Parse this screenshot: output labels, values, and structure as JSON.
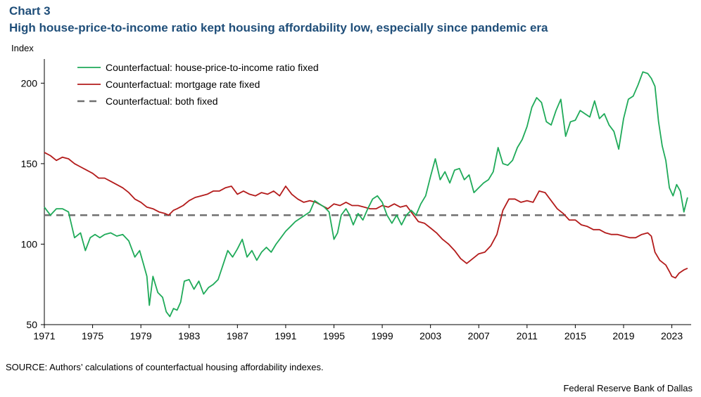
{
  "header": {
    "chart_label": "Chart 3",
    "title": "High house-price-to-income ratio kept housing affordability low, especially since pandemic era"
  },
  "footer": {
    "source": "SOURCE: Authors’ calculations of counterfactual housing affordability indexes.",
    "credit": "Federal Reserve Bank of Dallas"
  },
  "chart_data": {
    "type": "line",
    "ylabel": "Index",
    "ylim": [
      50,
      215
    ],
    "yticks": [
      50,
      100,
      150,
      200
    ],
    "xlim": [
      1971,
      2024.6
    ],
    "xticks": [
      1971,
      1975,
      1979,
      1983,
      1987,
      1991,
      1995,
      1999,
      2003,
      2007,
      2011,
      2015,
      2019,
      2023
    ],
    "grid": false,
    "legend_position": "top-left",
    "series": [
      {
        "name": "Counterfactual: house-price-to-income ratio fixed",
        "color": "#1faa59",
        "style": "solid",
        "x": [
          1971.0,
          1971.5,
          1972.0,
          1972.5,
          1973.0,
          1973.5,
          1974.0,
          1974.4,
          1974.8,
          1975.2,
          1975.6,
          1976.0,
          1976.5,
          1977.0,
          1977.5,
          1978.0,
          1978.5,
          1978.9,
          1979.2,
          1979.5,
          1979.7,
          1980.0,
          1980.4,
          1980.8,
          1981.1,
          1981.4,
          1981.7,
          1982.0,
          1982.3,
          1982.6,
          1983.0,
          1983.4,
          1983.8,
          1984.2,
          1984.6,
          1985.0,
          1985.4,
          1985.8,
          1986.2,
          1986.6,
          1987.0,
          1987.4,
          1987.8,
          1988.2,
          1988.6,
          1989.0,
          1989.4,
          1989.8,
          1990.2,
          1990.6,
          1991.0,
          1991.4,
          1991.8,
          1992.2,
          1992.6,
          1993.0,
          1993.4,
          1993.8,
          1994.2,
          1994.6,
          1995.0,
          1995.3,
          1995.6,
          1996.0,
          1996.3,
          1996.6,
          1997.0,
          1997.4,
          1997.8,
          1998.2,
          1998.6,
          1999.0,
          1999.4,
          1999.8,
          2000.2,
          2000.6,
          2001.0,
          2001.4,
          2001.8,
          2002.2,
          2002.6,
          2003.0,
          2003.4,
          2003.8,
          2004.2,
          2004.6,
          2005.0,
          2005.4,
          2005.8,
          2006.2,
          2006.6,
          2007.0,
          2007.4,
          2007.8,
          2008.2,
          2008.6,
          2009.0,
          2009.4,
          2009.8,
          2010.2,
          2010.6,
          2011.0,
          2011.4,
          2011.8,
          2012.2,
          2012.6,
          2013.0,
          2013.4,
          2013.8,
          2014.2,
          2014.6,
          2015.0,
          2015.4,
          2015.8,
          2016.2,
          2016.6,
          2017.0,
          2017.4,
          2017.8,
          2018.2,
          2018.6,
          2019.0,
          2019.4,
          2019.8,
          2020.2,
          2020.6,
          2021.0,
          2021.3,
          2021.6,
          2021.9,
          2022.2,
          2022.5,
          2022.8,
          2023.1,
          2023.4,
          2023.7,
          2024.0,
          2024.3
        ],
        "values": [
          123,
          118,
          122,
          122,
          120,
          104,
          107,
          96,
          104,
          106,
          104,
          106,
          107,
          105,
          106,
          102,
          92,
          96,
          88,
          80,
          62,
          80,
          70,
          67,
          58,
          55,
          60,
          59,
          64,
          77,
          78,
          72,
          77,
          69,
          73,
          75,
          78,
          87,
          96,
          92,
          97,
          103,
          92,
          96,
          90,
          95,
          98,
          95,
          100,
          104,
          108,
          111,
          114,
          116,
          118,
          120,
          127,
          125,
          123,
          120,
          103,
          107,
          118,
          122,
          118,
          112,
          119,
          115,
          122,
          128,
          130,
          126,
          118,
          113,
          118,
          112,
          118,
          121,
          118,
          125,
          130,
          142,
          153,
          140,
          145,
          138,
          146,
          147,
          140,
          143,
          132,
          135,
          138,
          140,
          145,
          160,
          150,
          149,
          152,
          160,
          165,
          173,
          185,
          191,
          188,
          176,
          174,
          183,
          190,
          167,
          176,
          177,
          183,
          181,
          179,
          189,
          178,
          181,
          174,
          170,
          159,
          178,
          190,
          192,
          199,
          207,
          206,
          203,
          198,
          176,
          161,
          152,
          135,
          130,
          137,
          133,
          120,
          129
        ]
      },
      {
        "name": "Counterfactual: mortgage rate fixed",
        "color": "#b31b1b",
        "style": "solid",
        "x": [
          1971.0,
          1971.5,
          1972.0,
          1972.5,
          1973.0,
          1973.5,
          1974.0,
          1974.5,
          1975.0,
          1975.5,
          1976.0,
          1976.5,
          1977.0,
          1977.5,
          1978.0,
          1978.5,
          1979.0,
          1979.5,
          1980.0,
          1980.5,
          1981.0,
          1981.3,
          1981.7,
          1982.0,
          1982.5,
          1983.0,
          1983.5,
          1984.0,
          1984.5,
          1985.0,
          1985.5,
          1986.0,
          1986.5,
          1987.0,
          1987.5,
          1988.0,
          1988.5,
          1989.0,
          1989.5,
          1990.0,
          1990.5,
          1991.0,
          1991.5,
          1992.0,
          1992.5,
          1993.0,
          1993.5,
          1994.0,
          1994.5,
          1995.0,
          1995.5,
          1996.0,
          1996.5,
          1997.0,
          1997.5,
          1998.0,
          1998.5,
          1999.0,
          1999.5,
          2000.0,
          2000.5,
          2001.0,
          2001.5,
          2002.0,
          2002.5,
          2003.0,
          2003.5,
          2004.0,
          2004.5,
          2005.0,
          2005.5,
          2006.0,
          2006.5,
          2007.0,
          2007.5,
          2008.0,
          2008.5,
          2009.0,
          2009.5,
          2010.0,
          2010.5,
          2011.0,
          2011.5,
          2012.0,
          2012.5,
          2013.0,
          2013.5,
          2014.0,
          2014.5,
          2015.0,
          2015.5,
          2016.0,
          2016.5,
          2017.0,
          2017.5,
          2018.0,
          2018.5,
          2019.0,
          2019.5,
          2020.0,
          2020.5,
          2021.0,
          2021.3,
          2021.6,
          2022.0,
          2022.5,
          2022.8,
          2023.0,
          2023.3,
          2023.6,
          2024.0,
          2024.3
        ],
        "values": [
          157,
          155,
          152,
          154,
          153,
          150,
          148,
          146,
          144,
          141,
          141,
          139,
          137,
          135,
          132,
          128,
          126,
          123,
          122,
          120,
          119,
          118,
          121,
          122,
          124,
          127,
          129,
          130,
          131,
          133,
          133,
          135,
          136,
          131,
          133,
          131,
          130,
          132,
          131,
          133,
          130,
          136,
          131,
          128,
          126,
          127,
          126,
          124,
          122,
          125,
          124,
          126,
          124,
          124,
          123,
          122,
          122,
          124,
          123,
          125,
          123,
          124,
          119,
          114,
          113,
          110,
          107,
          103,
          100,
          96,
          91,
          88,
          91,
          94,
          95,
          99,
          106,
          121,
          128,
          128,
          126,
          127,
          126,
          133,
          132,
          127,
          122,
          119,
          115,
          115,
          112,
          111,
          109,
          109,
          107,
          106,
          106,
          105,
          104,
          104,
          106,
          107,
          105,
          95,
          90,
          87,
          83,
          80,
          79,
          82,
          84,
          85
        ]
      },
      {
        "name": "Counterfactual: both fixed",
        "color": "#707070",
        "style": "dashed",
        "x": [
          1971.0,
          2024.3
        ],
        "values": [
          118,
          118
        ]
      }
    ]
  }
}
